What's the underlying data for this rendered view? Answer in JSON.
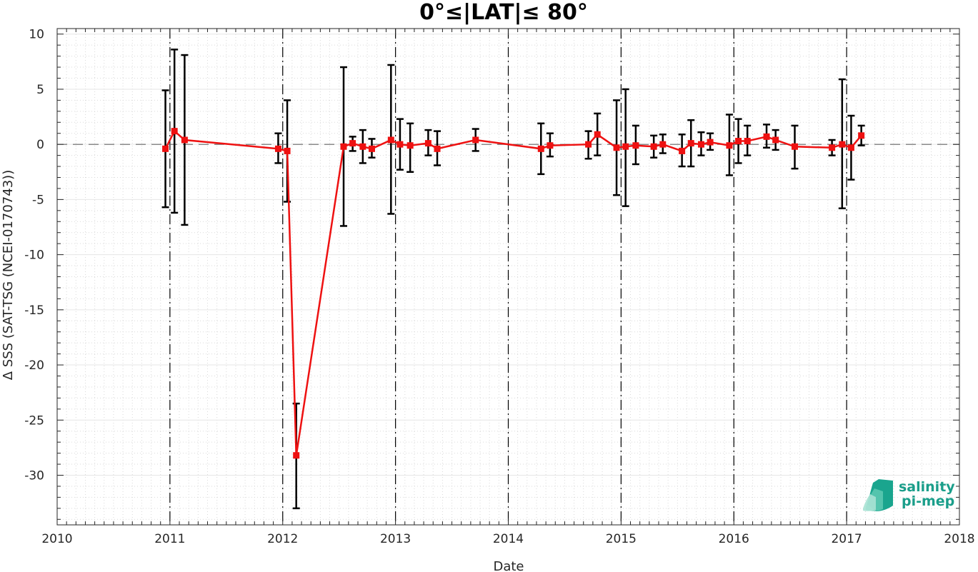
{
  "chart_data": {
    "type": "line",
    "title": "0°≤|LAT|≤ 80°",
    "xlabel": "Date",
    "ylabel": "Δ SSS (SAT-TSG (NCEI-0170743))",
    "xlim": [
      2010,
      2018
    ],
    "ylim": [
      -34.5,
      10.5
    ],
    "x_ticks": [
      "2010",
      "2011",
      "2012",
      "2013",
      "2014",
      "2015",
      "2016",
      "2017",
      "2018"
    ],
    "y_ticks": [
      "10",
      "5",
      "0",
      "-5",
      "-10",
      "-15",
      "-20",
      "-25",
      "-30"
    ],
    "grid": true,
    "reference_line_y": 0,
    "year_dividers": [
      2011,
      2012,
      2013,
      2014,
      2015,
      2016,
      2017
    ],
    "series": [
      {
        "color": "#ee1111",
        "marker": "square",
        "x": [
          2010.96,
          2011.04,
          2011.13,
          2011.96,
          2012.04,
          2012.12,
          2012.54,
          2012.62,
          2012.71,
          2012.79,
          2012.96,
          2013.04,
          2013.13,
          2013.29,
          2013.37,
          2013.71,
          2014.29,
          2014.37,
          2014.71,
          2014.79,
          2014.96,
          2015.04,
          2015.13,
          2015.29,
          2015.37,
          2015.54,
          2015.62,
          2015.71,
          2015.79,
          2015.96,
          2016.04,
          2016.12,
          2016.29,
          2016.37,
          2016.54,
          2016.87,
          2016.96,
          2017.04,
          2017.13
        ],
        "y": [
          -0.4,
          1.2,
          0.4,
          -0.4,
          -0.6,
          -28.2,
          -0.2,
          0.1,
          -0.2,
          -0.4,
          0.4,
          0.0,
          -0.1,
          0.1,
          -0.4,
          0.4,
          -0.4,
          -0.1,
          0.0,
          0.9,
          -0.3,
          -0.2,
          -0.1,
          -0.2,
          0.0,
          -0.6,
          0.1,
          0.0,
          0.2,
          -0.1,
          0.3,
          0.3,
          0.7,
          0.4,
          -0.2,
          -0.3,
          0.0,
          -0.3,
          0.8
        ],
        "err_low": [
          -5.7,
          -6.2,
          -7.3,
          -1.7,
          -5.2,
          -33.0,
          -7.4,
          -0.6,
          -1.7,
          -1.2,
          -6.3,
          -2.3,
          -2.5,
          -1.0,
          -1.9,
          -0.6,
          -2.7,
          -1.1,
          -1.3,
          -1.0,
          -4.6,
          -5.6,
          -1.8,
          -1.2,
          -0.8,
          -2.0,
          -2.0,
          -1.0,
          -0.5,
          -2.8,
          -1.7,
          -1.0,
          -0.3,
          -0.5,
          -2.2,
          -1.0,
          -5.8,
          -3.2,
          -0.1
        ],
        "err_high": [
          4.9,
          8.6,
          8.1,
          1.0,
          4.0,
          -23.5,
          7.0,
          0.7,
          1.3,
          0.5,
          7.2,
          2.3,
          1.9,
          1.3,
          1.2,
          1.4,
          1.9,
          1.0,
          1.2,
          2.8,
          4.0,
          5.0,
          1.7,
          0.8,
          0.9,
          0.9,
          2.2,
          1.1,
          1.0,
          2.7,
          2.3,
          1.7,
          1.8,
          1.3,
          1.7,
          0.4,
          5.9,
          2.6,
          1.7
        ]
      }
    ]
  },
  "logo": {
    "line1": "salinity",
    "line2": "pi-mep"
  }
}
